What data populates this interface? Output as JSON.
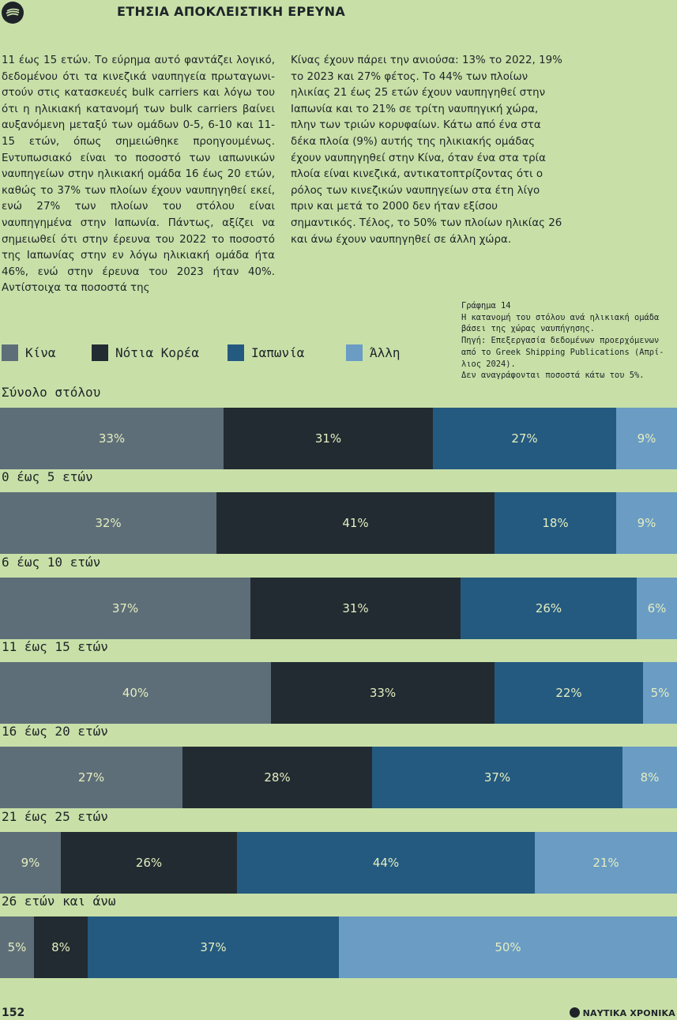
{
  "header": {
    "title": "ΕΤΗΣΙΑ ΑΠΟΚΛΕΙΣΤΙΚΗ ΕΡΕΥΝΑ"
  },
  "body_text": {
    "left_column": "11 έως 15 ετών. Το εύρημα αυτό φαντάζει λογικό, δεδομένου ότι τα κινεζικά ναυπηγεία πρωταγωνι­στούν στις κατασκευές bulk carriers και λόγω του ότι η ηλικιακή κατανομή των bulk carriers βαίνει αυξανόμενη μεταξύ των ομάδων 0-5, 6-10 και 11-15 ετών, όπως σημειώθηκε προηγουμένως. Εντυπωσιακό είναι το ποσοστό των ιαπωνικών ναυπηγείων στην ηλικιακή ομάδα 16 έως 20 ετών, καθώς το 37% των πλοίων έχουν ναυπηγηθεί εκεί, ενώ 27% των πλοίων του στόλου είναι ναυπηγημένα στην Ιαπωνία. Πάντως, αξίζει να σημειωθεί ότι στην έρευνα του 2022 το ποσοστό της Ιαπωνίας στην εν λόγω ηλικιακή ομάδα ήτα 46%, ενώ στην έρευνα του 2023 ήταν 40%. Αντίστοιχα τα ποσοστά της",
    "right_column": "Κίνας έχουν πάρει την ανιούσα: 13% το 2022, 19% το 2023 και 27% φέτος. Το 44% των πλοίων ηλικίας 21 έως 25 ετών έχουν ναυπηγηθεί στην Ιαπωνία και το 21% σε τρίτη ναυ­πηγική χώρα, πλην των τριών κορυφαίων. Κάτω από ένα στα δέκα πλοία (9%) αυτής της ηλικιακής ομάδας έχουν ναυπηγηθεί στην Κίνα, όταν ένα στα τρία πλοία είναι κινεζικά, αντικατοπτρίζοντας ότι ο ρόλος των κινεζικών ναυπηγείων στα έτη λίγο πριν και μετά το 2000 δεν ήταν εξίσου σημαντικός. Τέλος, το 50% των πλοίων ηλικίας 26 και άνω έχουν ναυπηγηθεί σε άλλη χώρα."
  },
  "chart_note": {
    "line1": "Γράφημα 14",
    "line2": "Η κατανομή του στόλου ανά ηλικιακή ομάδα βάσει της χώρας ναυπήγησης.",
    "line3": "Πηγή: Επεξεργασία δεδομένων προερχόμενων από το Greek Shipping Publications (Απρί­λιος 2024).",
    "line4": "Δεν αναγράφονται ποσοστά κάτω του 5%."
  },
  "colors": {
    "background": "#c8e0a8",
    "china": "#5e6e78",
    "south_korea": "#222b31",
    "japan": "#245a80",
    "other": "#6a9cc4",
    "segment_text": "#e4eec0"
  },
  "chart_data": {
    "type": "bar",
    "orientation": "horizontal-stacked-100",
    "legend": [
      {
        "name": "Κίνα",
        "color": "#5e6e78"
      },
      {
        "name": "Νότια Κορέα",
        "color": "#222b31"
      },
      {
        "name": "Ιαπωνία",
        "color": "#245a80"
      },
      {
        "name": "Άλλη",
        "color": "#6a9cc4"
      }
    ],
    "legend_placement": "top-left",
    "categories": [
      "Σύνολο στόλου",
      "0 έως 5 ετών",
      "6 έως 10 ετών",
      "11 έως 15 ετών",
      "16 έως 20 ετών",
      "21 έως 25 ετών",
      "26 ετών και άνω"
    ],
    "series": [
      {
        "name": "Κίνα",
        "values": [
          33,
          32,
          37,
          40,
          27,
          9,
          5
        ]
      },
      {
        "name": "Νότια Κορέα",
        "values": [
          31,
          41,
          31,
          33,
          28,
          26,
          8
        ]
      },
      {
        "name": "Ιαπωνία",
        "values": [
          27,
          18,
          26,
          22,
          37,
          44,
          37
        ]
      },
      {
        "name": "Άλλη",
        "values": [
          9,
          9,
          6,
          5,
          8,
          21,
          50
        ]
      }
    ],
    "value_suffix": "%",
    "xlim": [
      0,
      100
    ]
  },
  "footer": {
    "page_number": "152",
    "brand": "ΝΑΥΤΙΚΑ ΧΡΟΝΙΚΑ"
  }
}
